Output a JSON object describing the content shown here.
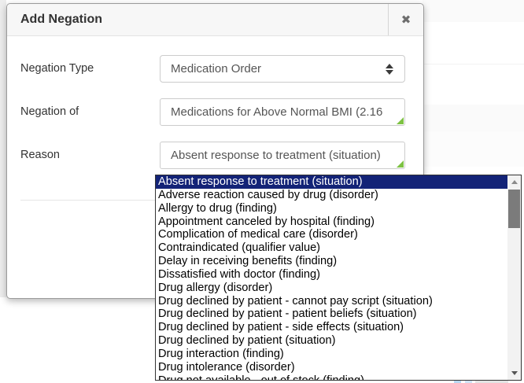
{
  "dialog": {
    "title": "Add Negation",
    "close_glyph": "✖",
    "fields": [
      {
        "label": "Negation Type",
        "value": "Medication Order"
      },
      {
        "label": "Negation of",
        "value": "Medications for Above Normal BMI (2.16"
      },
      {
        "label": "Reason",
        "value": "Absent response to treatment (situation)"
      }
    ]
  },
  "reason_dropdown": {
    "selected_index": 0,
    "options": [
      "Absent response to treatment (situation)",
      "Adverse reaction caused by drug (disorder)",
      "Allergy to drug (finding)",
      "Appointment canceled by hospital (finding)",
      "Complication of medical care (disorder)",
      "Contraindicated (qualifier value)",
      "Delay in receiving benefits (finding)",
      "Dissatisfied with doctor (finding)",
      "Drug allergy (disorder)",
      "Drug declined by patient - cannot pay script (situation)",
      "Drug declined by patient - patient beliefs (situation)",
      "Drug declined by patient - side effects (situation)",
      "Drug declined by patient (situation)",
      "Drug interaction (finding)",
      "Drug intolerance (disorder)",
      "Drug not available - out of stock (finding)"
    ]
  },
  "colors": {
    "highlight": "#132377",
    "handle": "#7dc243",
    "headerbg": "#f7f7f7"
  }
}
